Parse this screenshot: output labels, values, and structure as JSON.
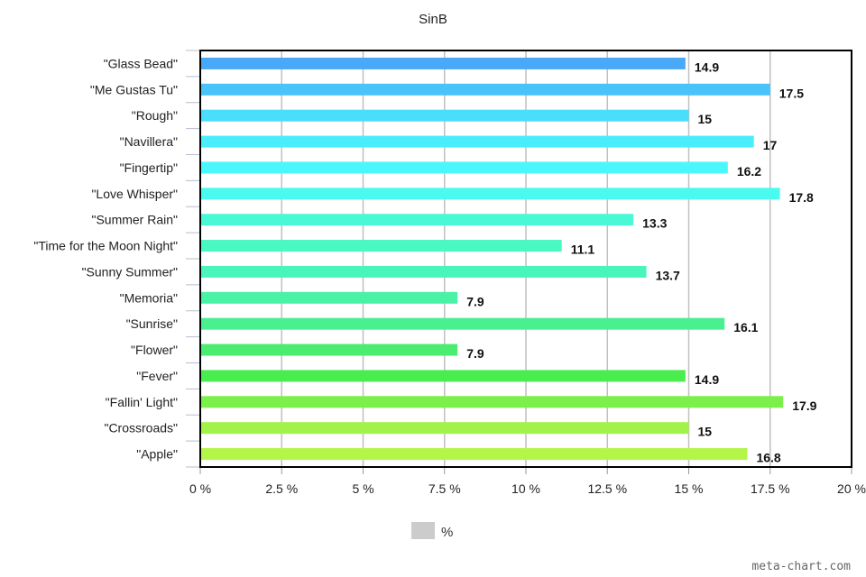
{
  "chart_data": {
    "type": "bar",
    "orientation": "horizontal",
    "title": "SinB",
    "categories": [
      "\"Glass Bead\"",
      "\"Me Gustas Tu\"",
      "\"Rough\"",
      "\"Navillera\"",
      "\"Fingertip\"",
      "\"Love Whisper\"",
      "\"Summer Rain\"",
      "\"Time for the Moon Night\"",
      "\"Sunny Summer\"",
      "\"Memoria\"",
      "\"Sunrise\"",
      "\"Flower\"",
      "\"Fever\"",
      "\"Fallin' Light\"",
      "\"Crossroads\"",
      "\"Apple\""
    ],
    "series": [
      {
        "name": "%",
        "values": [
          14.9,
          17.5,
          15,
          17,
          16.2,
          17.8,
          13.3,
          11.1,
          13.7,
          7.9,
          16.1,
          7.9,
          14.9,
          17.9,
          15,
          16.8
        ]
      }
    ],
    "data_labels": [
      "14.9",
      "17.5",
      "15",
      "17",
      "16.2",
      "17.8",
      "13.3",
      "11.1",
      "13.7",
      "7.9",
      "16.1",
      "7.9",
      "14.9",
      "17.9",
      "15",
      "16.8"
    ],
    "bar_colors": [
      "#4aa8f8",
      "#4ac3fb",
      "#4addfc",
      "#4aedfc",
      "#4af7fc",
      "#4afaf0",
      "#4af8d6",
      "#4af8c1",
      "#4af5bc",
      "#4af2a6",
      "#4af090",
      "#4aed70",
      "#4aed4e",
      "#7cf04a",
      "#a2f24a",
      "#b4f54a"
    ],
    "xlim": [
      0,
      20
    ],
    "x_ticks": [
      "0 %",
      "2.5 %",
      "5 %",
      "7.5 %",
      "10 %",
      "12.5 %",
      "15 %",
      "17.5 %",
      "20 %"
    ],
    "x_tick_values": [
      0,
      2.5,
      5,
      7.5,
      10,
      12.5,
      15,
      17.5,
      20
    ],
    "grid": "vertical",
    "legend": {
      "position": "bottom-center",
      "label": "%",
      "color": "#cccccc"
    }
  },
  "credit": "meta-chart.com"
}
